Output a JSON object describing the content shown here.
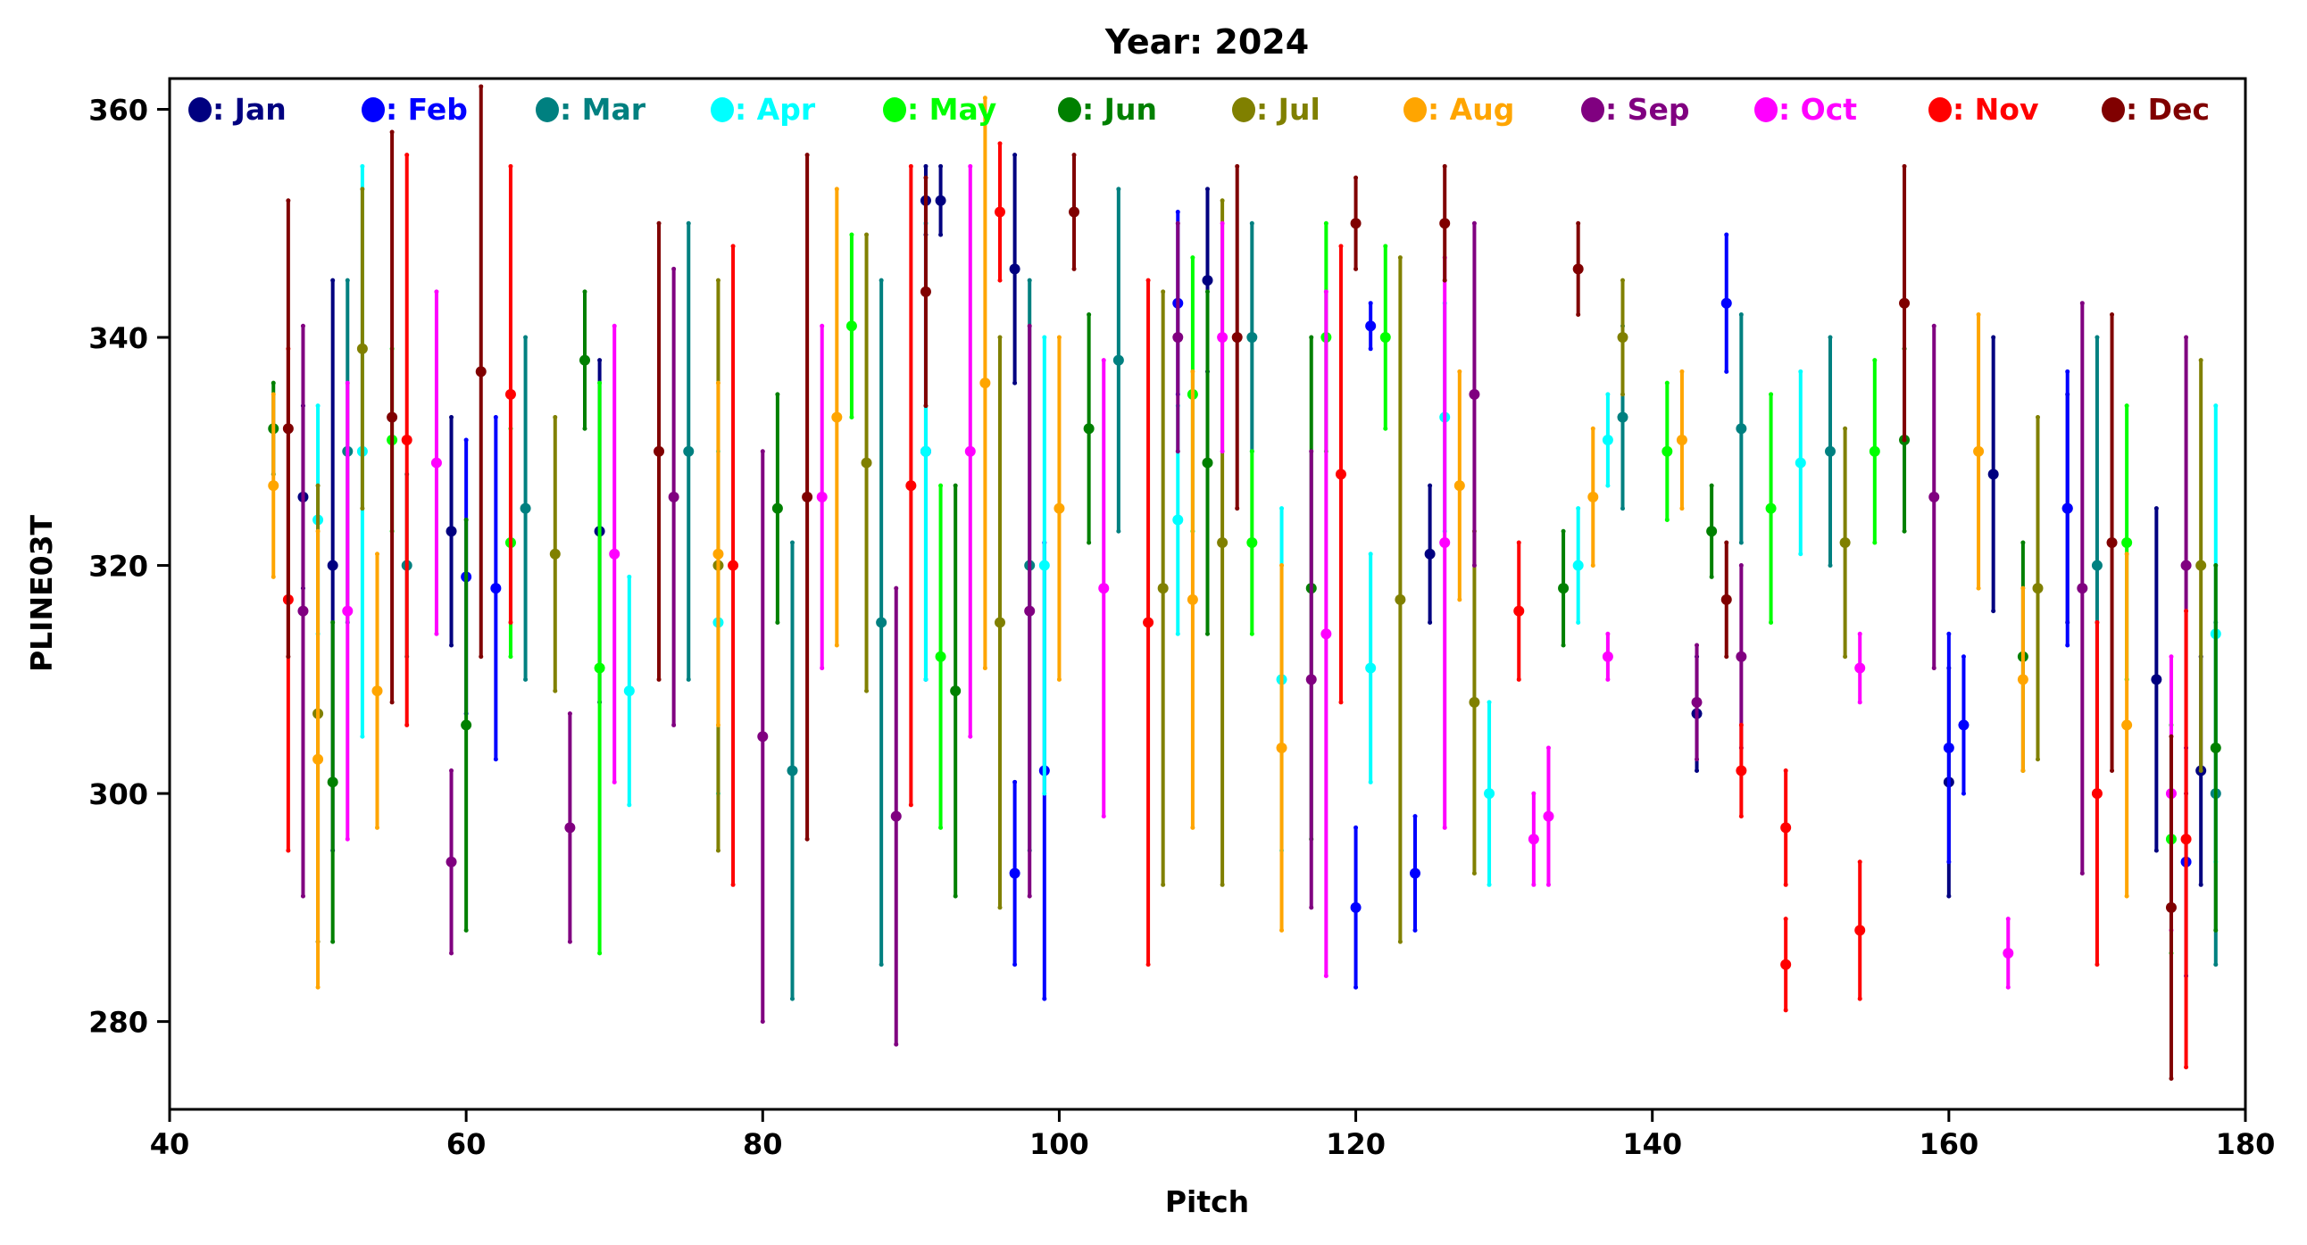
{
  "chart_data": {
    "type": "scatter",
    "title": "Year: 2024",
    "xlabel": "Pitch",
    "ylabel": "PLINE03T",
    "xlim": [
      40,
      180
    ],
    "ylim": [
      272.3,
      362.7
    ],
    "xticks": [
      40,
      60,
      80,
      100,
      120,
      140,
      160,
      180
    ],
    "yticks": [
      280,
      300,
      320,
      340,
      360
    ],
    "grid": false,
    "legend_placement": "top",
    "point_format": [
      "pitch",
      "value",
      "error"
    ],
    "series": [
      {
        "name": "Jan",
        "label": ": Jan",
        "color": "#000080",
        "points": [
          [
            49,
            326,
            8
          ],
          [
            51,
            320,
            25
          ],
          [
            59,
            323,
            10
          ],
          [
            69,
            323,
            15
          ],
          [
            91,
            352,
            3
          ],
          [
            92,
            352,
            3
          ],
          [
            97,
            346,
            10
          ],
          [
            110,
            345,
            8
          ],
          [
            125,
            321,
            6
          ],
          [
            143,
            307,
            5
          ],
          [
            160,
            301,
            10
          ],
          [
            163,
            328,
            12
          ],
          [
            168,
            325,
            10
          ],
          [
            174,
            310,
            15
          ],
          [
            177,
            302,
            10
          ]
        ]
      },
      {
        "name": "Feb",
        "label": ": Feb",
        "color": "#0000ff",
        "points": [
          [
            60,
            319,
            12
          ],
          [
            62,
            318,
            15
          ],
          [
            91,
            330,
            20
          ],
          [
            97,
            293,
            8
          ],
          [
            99,
            302,
            20
          ],
          [
            108,
            343,
            8
          ],
          [
            120,
            290,
            7
          ],
          [
            121,
            341,
            2
          ],
          [
            124,
            293,
            5
          ],
          [
            145,
            343,
            6
          ],
          [
            160,
            304,
            10
          ],
          [
            161,
            306,
            6
          ],
          [
            168,
            325,
            12
          ],
          [
            176,
            294,
            10
          ]
        ]
      },
      {
        "name": "Mar",
        "label": ": Mar",
        "color": "#008080",
        "points": [
          [
            52,
            330,
            15
          ],
          [
            56,
            320,
            8
          ],
          [
            64,
            325,
            15
          ],
          [
            75,
            330,
            20
          ],
          [
            82,
            302,
            20
          ],
          [
            88,
            315,
            30
          ],
          [
            98,
            320,
            25
          ],
          [
            104,
            338,
            15
          ],
          [
            113,
            340,
            10
          ],
          [
            138,
            333,
            8
          ],
          [
            146,
            332,
            10
          ],
          [
            152,
            330,
            10
          ],
          [
            170,
            320,
            20
          ],
          [
            178,
            300,
            15
          ]
        ]
      },
      {
        "name": "Apr",
        "label": ": Apr",
        "color": "#00ffff",
        "points": [
          [
            50,
            324,
            10
          ],
          [
            53,
            330,
            25
          ],
          [
            71,
            309,
            10
          ],
          [
            77,
            315,
            15
          ],
          [
            91,
            330,
            20
          ],
          [
            99,
            320,
            20
          ],
          [
            108,
            324,
            10
          ],
          [
            115,
            310,
            15
          ],
          [
            121,
            311,
            10
          ],
          [
            126,
            333,
            10
          ],
          [
            129,
            300,
            8
          ],
          [
            135,
            320,
            5
          ],
          [
            137,
            331,
            4
          ],
          [
            150,
            329,
            8
          ],
          [
            178,
            314,
            20
          ]
        ]
      },
      {
        "name": "May",
        "label": ": May",
        "color": "#00ff00",
        "points": [
          [
            55,
            331,
            8
          ],
          [
            63,
            322,
            10
          ],
          [
            69,
            311,
            25
          ],
          [
            86,
            341,
            8
          ],
          [
            92,
            312,
            15
          ],
          [
            109,
            335,
            12
          ],
          [
            113,
            322,
            8
          ],
          [
            118,
            340,
            10
          ],
          [
            122,
            340,
            8
          ],
          [
            141,
            330,
            6
          ],
          [
            148,
            325,
            10
          ],
          [
            155,
            330,
            8
          ],
          [
            172,
            322,
            12
          ],
          [
            175,
            296,
            10
          ]
        ]
      },
      {
        "name": "Jun",
        "label": ": Jun",
        "color": "#008000",
        "points": [
          [
            47,
            332,
            4
          ],
          [
            51,
            301,
            14
          ],
          [
            60,
            306,
            18
          ],
          [
            68,
            338,
            6
          ],
          [
            81,
            325,
            10
          ],
          [
            93,
            309,
            18
          ],
          [
            102,
            332,
            10
          ],
          [
            110,
            329,
            15
          ],
          [
            117,
            318,
            22
          ],
          [
            134,
            318,
            5
          ],
          [
            144,
            323,
            4
          ],
          [
            157,
            331,
            8
          ],
          [
            165,
            312,
            10
          ],
          [
            178,
            304,
            16
          ]
        ]
      },
      {
        "name": "Jul",
        "label": ": Jul",
        "color": "#808000",
        "points": [
          [
            50,
            307,
            20
          ],
          [
            53,
            339,
            14
          ],
          [
            66,
            321,
            12
          ],
          [
            77,
            320,
            25
          ],
          [
            87,
            329,
            20
          ],
          [
            96,
            315,
            25
          ],
          [
            107,
            318,
            26
          ],
          [
            111,
            322,
            30
          ],
          [
            123,
            317,
            30
          ],
          [
            128,
            308,
            15
          ],
          [
            138,
            340,
            5
          ],
          [
            153,
            322,
            10
          ],
          [
            166,
            318,
            15
          ],
          [
            177,
            320,
            18
          ]
        ]
      },
      {
        "name": "Aug",
        "label": ": Aug",
        "color": "#ffa500",
        "points": [
          [
            47,
            327,
            8
          ],
          [
            50,
            303,
            20
          ],
          [
            54,
            309,
            12
          ],
          [
            77,
            321,
            15
          ],
          [
            85,
            333,
            20
          ],
          [
            95,
            336,
            25
          ],
          [
            100,
            325,
            15
          ],
          [
            109,
            317,
            20
          ],
          [
            115,
            304,
            16
          ],
          [
            127,
            327,
            10
          ],
          [
            136,
            326,
            6
          ],
          [
            142,
            331,
            6
          ],
          [
            162,
            330,
            12
          ],
          [
            165,
            310,
            8
          ],
          [
            172,
            306,
            15
          ]
        ]
      },
      {
        "name": "Sep",
        "label": ": Sep",
        "color": "#800080",
        "points": [
          [
            49,
            316,
            25
          ],
          [
            59,
            294,
            8
          ],
          [
            67,
            297,
            10
          ],
          [
            74,
            326,
            20
          ],
          [
            80,
            305,
            25
          ],
          [
            89,
            298,
            20
          ],
          [
            98,
            316,
            25
          ],
          [
            108,
            340,
            10
          ],
          [
            117,
            310,
            20
          ],
          [
            128,
            335,
            15
          ],
          [
            143,
            308,
            5
          ],
          [
            146,
            312,
            8
          ],
          [
            159,
            326,
            15
          ],
          [
            169,
            318,
            25
          ],
          [
            176,
            320,
            20
          ]
        ]
      },
      {
        "name": "Oct",
        "label": ": Oct",
        "color": "#ff00ff",
        "points": [
          [
            52,
            316,
            20
          ],
          [
            58,
            329,
            15
          ],
          [
            70,
            321,
            20
          ],
          [
            84,
            326,
            15
          ],
          [
            94,
            330,
            25
          ],
          [
            103,
            318,
            20
          ],
          [
            111,
            340,
            10
          ],
          [
            118,
            314,
            30
          ],
          [
            126,
            322,
            25
          ],
          [
            132,
            296,
            4
          ],
          [
            133,
            298,
            6
          ],
          [
            137,
            312,
            2
          ],
          [
            154,
            311,
            3
          ],
          [
            164,
            286,
            3
          ],
          [
            175,
            300,
            12
          ]
        ]
      },
      {
        "name": "Nov",
        "label": ": Nov",
        "color": "#ff0000",
        "points": [
          [
            48,
            317,
            22
          ],
          [
            56,
            331,
            25
          ],
          [
            63,
            335,
            20
          ],
          [
            78,
            320,
            28
          ],
          [
            90,
            327,
            28
          ],
          [
            96,
            351,
            6
          ],
          [
            106,
            315,
            30
          ],
          [
            119,
            328,
            20
          ],
          [
            131,
            316,
            6
          ],
          [
            146,
            302,
            4
          ],
          [
            149,
            285,
            4
          ],
          [
            149,
            297,
            5
          ],
          [
            154,
            288,
            6
          ],
          [
            170,
            300,
            15
          ],
          [
            176,
            296,
            20
          ]
        ]
      },
      {
        "name": "Dec",
        "label": ": Dec",
        "color": "#800000",
        "points": [
          [
            48,
            332,
            20
          ],
          [
            55,
            333,
            25
          ],
          [
            61,
            337,
            25
          ],
          [
            73,
            330,
            20
          ],
          [
            83,
            326,
            30
          ],
          [
            91,
            344,
            10
          ],
          [
            101,
            351,
            5
          ],
          [
            112,
            340,
            15
          ],
          [
            120,
            350,
            4
          ],
          [
            126,
            350,
            5
          ],
          [
            135,
            346,
            4
          ],
          [
            145,
            317,
            5
          ],
          [
            157,
            343,
            12
          ],
          [
            171,
            322,
            20
          ],
          [
            175,
            290,
            15
          ]
        ]
      }
    ]
  }
}
